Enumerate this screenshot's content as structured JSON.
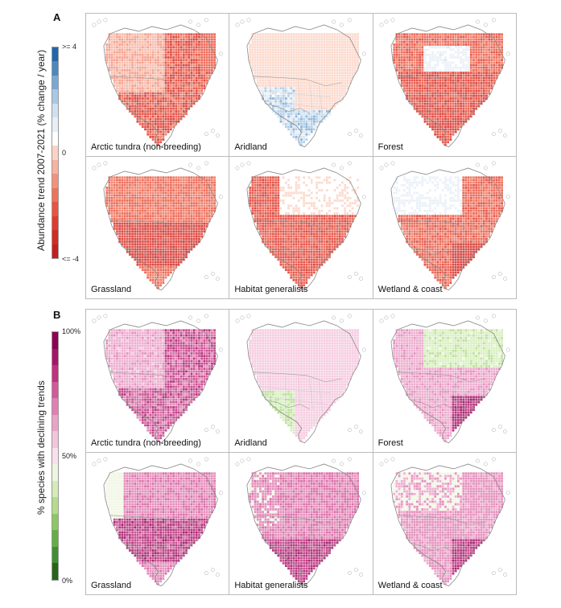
{
  "chart_data": [
    {
      "type": "heatmap",
      "panel_letter": "A",
      "ylabel": "Abundance trend 2007-2021 (% change / year)",
      "colorbar": {
        "tick_labels": [
          ">= 4",
          "0",
          "<= -4"
        ],
        "range": [
          -4,
          4
        ],
        "colors": [
          "#2166ac",
          "#4a88c0",
          "#7aa8d4",
          "#a8c8e4",
          "#cfe1f0",
          "#e6eef7",
          "#ffffff",
          "#fbd3c5",
          "#f7b3a0",
          "#f3927c",
          "#ef7259",
          "#e95440",
          "#e13a2e",
          "#d42a24",
          "#c41f1f"
        ]
      },
      "panels": [
        {
          "label": "Arctic tundra (non-breeding)",
          "pattern": "tundra"
        },
        {
          "label": "Aridland",
          "pattern": "aridland"
        },
        {
          "label": "Forest",
          "pattern": "forest"
        },
        {
          "label": "Grassland",
          "pattern": "grassland"
        },
        {
          "label": "Habitat generalists",
          "pattern": "generalist"
        },
        {
          "label": "Wetland & coast",
          "pattern": "wetland"
        }
      ]
    },
    {
      "type": "heatmap",
      "panel_letter": "B",
      "ylabel": "% species with declining trends",
      "colorbar": {
        "tick_labels": [
          "100%",
          "50%",
          "0%"
        ],
        "range": [
          0,
          100
        ],
        "colors": [
          "#8e0152",
          "#a8146a",
          "#c2307f",
          "#d4589a",
          "#e07fb3",
          "#eba1c8",
          "#f3c4dc",
          "#f9e0ed",
          "#eef5e0",
          "#d4ecb8",
          "#b3dc8c",
          "#8cc862",
          "#64ae45",
          "#3f8f32",
          "#276419"
        ]
      },
      "panels": [
        {
          "label": "Arctic tundra (non-breeding)",
          "pattern": "tundra"
        },
        {
          "label": "Aridland",
          "pattern": "aridland"
        },
        {
          "label": "Forest",
          "pattern": "forest"
        },
        {
          "label": "Grassland",
          "pattern": "grassland"
        },
        {
          "label": "Habitat generalists",
          "pattern": "generalist"
        },
        {
          "label": "Wetland & coast",
          "pattern": "wetland"
        }
      ]
    }
  ]
}
